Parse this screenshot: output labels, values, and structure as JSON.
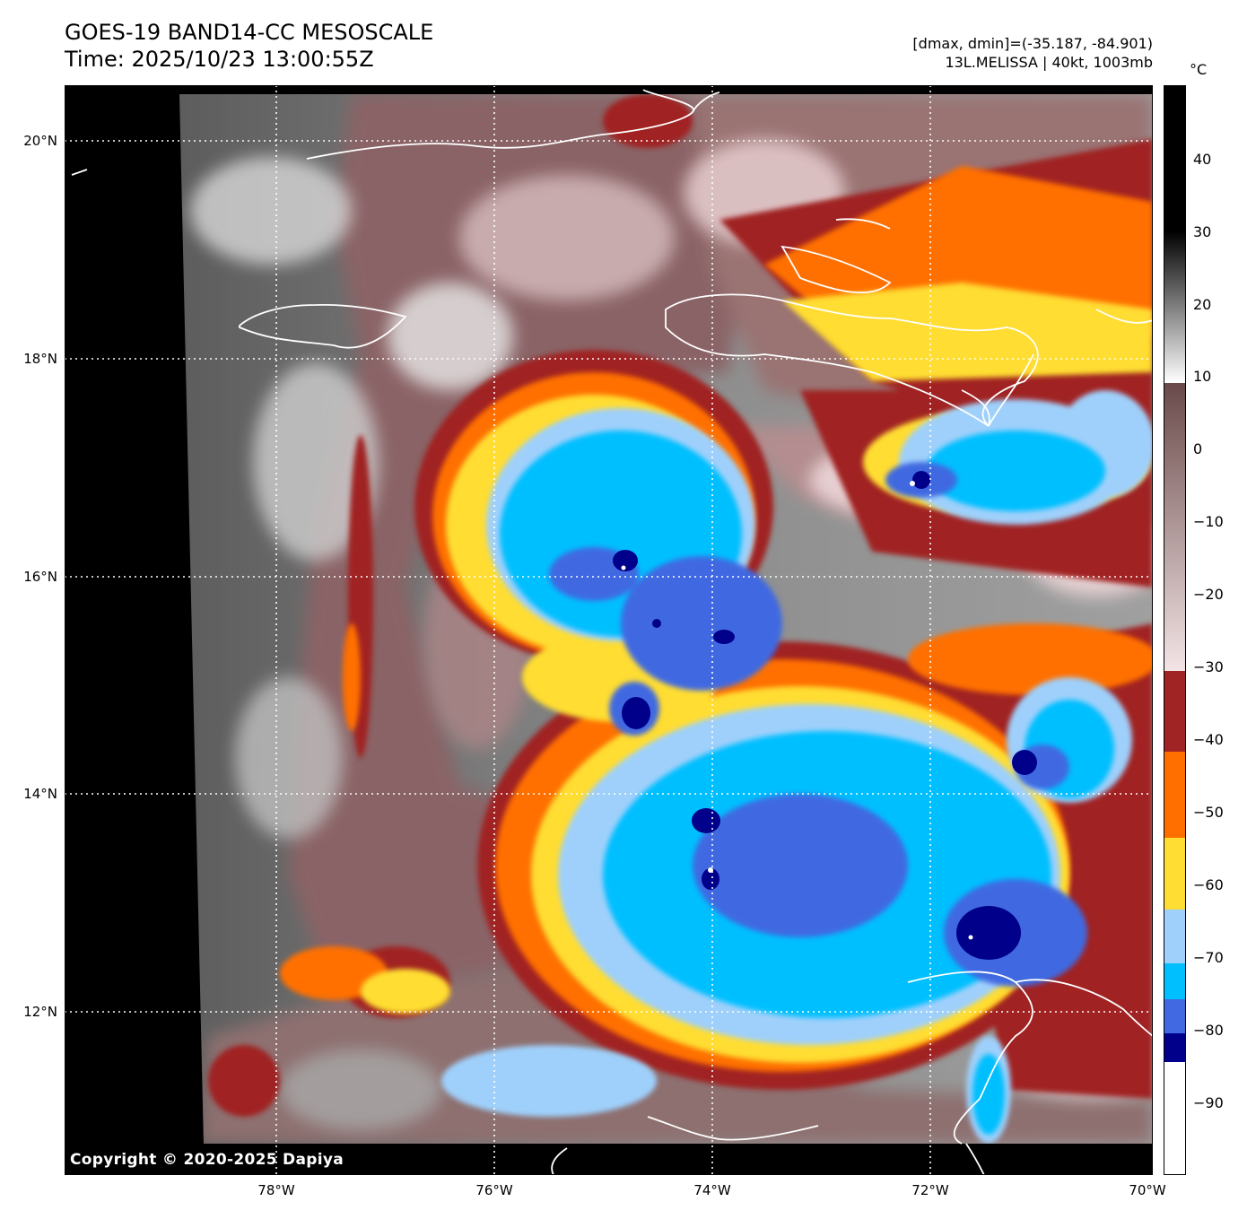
{
  "header": {
    "title_line1": "GOES-19 BAND14-CC MESOSCALE",
    "title_line2": "Time: 2025/10/23 13:00:55Z",
    "info_line1": "[dmax, dmin]=(-35.187, -84.901)",
    "info_line2": "13L.MELISSA | 40kt, 1003mb"
  },
  "map": {
    "copyright": "Copyright © 2020-2025 Dapiya",
    "lat_labels": [
      "20°N",
      "18°N",
      "16°N",
      "14°N",
      "12°N"
    ],
    "lon_labels": [
      "78°W",
      "76°W",
      "74°W",
      "72°W",
      "70°W"
    ]
  },
  "colorbar": {
    "unit": "°C",
    "ticks": [
      "40",
      "30",
      "20",
      "10",
      "0",
      "−10",
      "−20",
      "−30",
      "−40",
      "−50",
      "−60",
      "−70",
      "−80",
      "−90"
    ],
    "colors": {
      "white": "#ffffff",
      "navy": "#00008b",
      "royal_blue": "#4169e1",
      "deep_sky": "#00bfff",
      "light_blue": "#9fd0fb",
      "gold": "#ffdd33",
      "orange": "#ff6f00",
      "brown": "#a02424",
      "pink": "#f2d7d9",
      "mauve": "#7a5a5a"
    }
  }
}
